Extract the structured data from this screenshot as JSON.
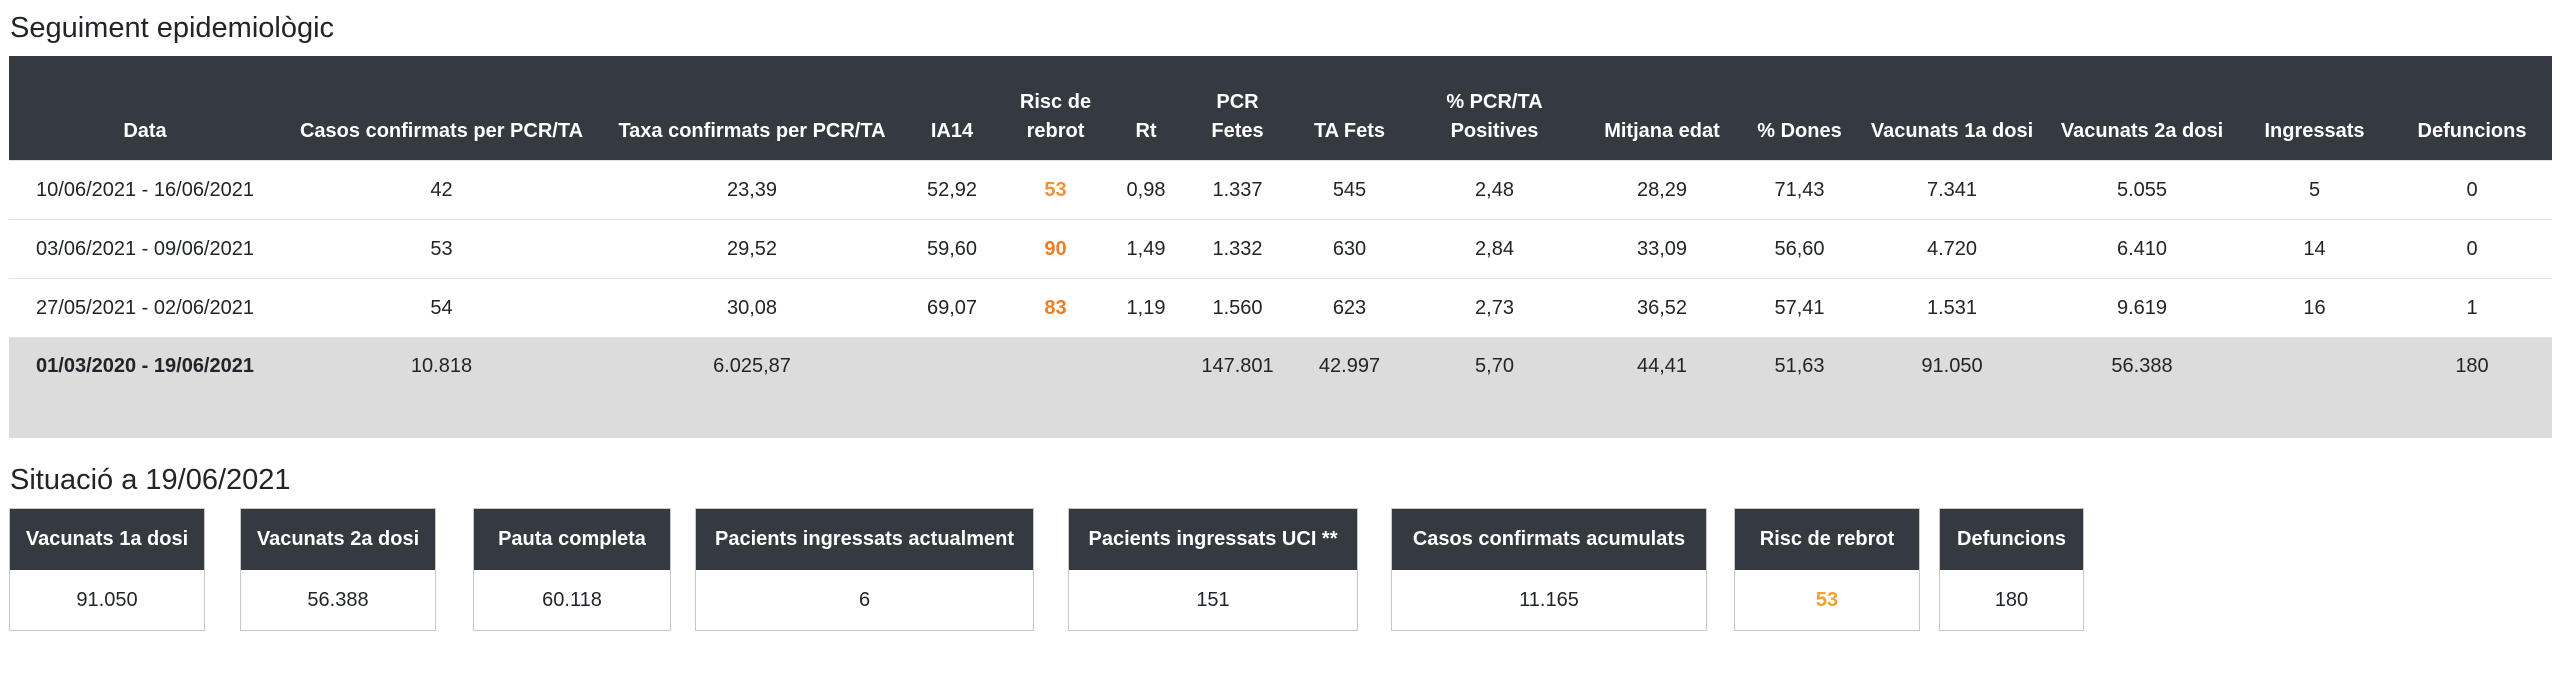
{
  "section1": {
    "title": "Seguiment epidemiològic"
  },
  "table": {
    "headers": [
      "Data",
      "Casos confirmats per PCR/TA",
      "Taxa confirmats per PCR/TA",
      "IA14",
      "Risc de rebrot",
      "Rt",
      "PCR Fetes",
      "TA Fets",
      "% PCR/TA Positives",
      "Mitjana edat",
      "% Dones",
      "Vacunats 1a dosi",
      "Vacunats 2a dosi",
      "Ingressats",
      "Defuncions"
    ],
    "rows": [
      [
        "10/06/2021 - 16/06/2021",
        "42",
        "23,39",
        "52,92",
        "53",
        "0,98",
        "1.337",
        "545",
        "2,48",
        "28,29",
        "71,43",
        "7.341",
        "5.055",
        "5",
        "0"
      ],
      [
        "03/06/2021 - 09/06/2021",
        "53",
        "29,52",
        "59,60",
        "90",
        "1,49",
        "1.332",
        "630",
        "2,84",
        "33,09",
        "56,60",
        "4.720",
        "6.410",
        "14",
        "0"
      ],
      [
        "27/05/2021 - 02/06/2021",
        "54",
        "30,08",
        "69,07",
        "83",
        "1,19",
        "1.560",
        "623",
        "2,73",
        "36,52",
        "57,41",
        "1.531",
        "9.619",
        "16",
        "1"
      ]
    ],
    "risk_colors": [
      "#f0923a",
      "#ef7d22",
      "#ef7d22"
    ],
    "total": [
      "01/03/2020 - 19/06/2021",
      "10.818",
      "6.025,87",
      "",
      "",
      "",
      "147.801",
      "42.997",
      "5,70",
      "44,41",
      "51,63",
      "91.050",
      "56.388",
      "",
      "180"
    ]
  },
  "section2": {
    "title": "Situació a 19/06/2021"
  },
  "cards": [
    {
      "label": "Vacunats 1a dosi",
      "value": "91.050"
    },
    {
      "label": "Vacunats 2a dosi",
      "value": "56.388"
    },
    {
      "label": "Pauta completa",
      "value": "60.118"
    },
    {
      "label": "Pacients ingressats actualment",
      "value": "6"
    },
    {
      "label": "Pacients ingressats UCI **",
      "value": "151"
    },
    {
      "label": "Casos confirmats acumulats",
      "value": "11.165"
    },
    {
      "label": "Risc de rebrot",
      "value": "53",
      "color": "#f0a030"
    },
    {
      "label": "Defuncions",
      "value": "180"
    }
  ],
  "colors": {
    "header_bg": "#343a40",
    "total_bg": "#dcdcdc"
  }
}
